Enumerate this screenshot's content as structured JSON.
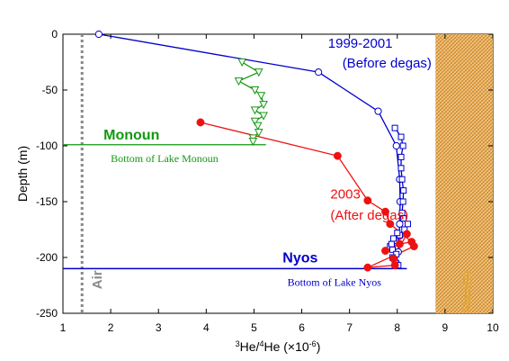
{
  "chart_data": {
    "type": "scatter",
    "xlabel_parts": {
      "sup1": "3",
      "mid": "He/",
      "sup2": "4",
      "tail": "He (×10",
      "exp": "-6",
      "close": ")"
    },
    "ylabel": "Depth (m)",
    "xlim": [
      1,
      10
    ],
    "ylim": [
      -250,
      0
    ],
    "xticks": [
      1,
      2,
      3,
      4,
      5,
      6,
      7,
      8,
      9,
      10
    ],
    "yticks": [
      0,
      -50,
      -100,
      -150,
      -200,
      -250
    ],
    "series": [
      {
        "key": "1999-2001",
        "marker": "open-circle",
        "color": "#0000cc",
        "points": [
          [
            1.75,
            0
          ],
          [
            6.35,
            -34
          ],
          [
            7.6,
            -69
          ],
          [
            7.98,
            -100
          ],
          [
            8.05,
            -130
          ],
          [
            8.06,
            -150
          ],
          [
            8.05,
            -170
          ],
          [
            8.02,
            -195
          ],
          [
            7.98,
            -205
          ]
        ]
      },
      {
        "key": "1999-2001-squares",
        "marker": "open-square",
        "color": "#0000cc",
        "points": [
          [
            7.95,
            -84
          ],
          [
            8.08,
            -92
          ],
          [
            8.12,
            -100
          ],
          [
            8.08,
            -110
          ],
          [
            8.08,
            -120
          ],
          [
            8.1,
            -130
          ],
          [
            8.13,
            -140
          ],
          [
            8.12,
            -150
          ],
          [
            8.1,
            -160
          ],
          [
            8.13,
            -165
          ],
          [
            8.22,
            -170
          ],
          [
            8.15,
            -175
          ],
          [
            8.05,
            -180
          ],
          [
            7.95,
            -185
          ],
          [
            7.85,
            -190
          ],
          [
            7.9,
            -193
          ],
          [
            7.98,
            -197
          ],
          [
            7.9,
            -200
          ],
          [
            7.95,
            -204
          ],
          [
            8.02,
            -207
          ],
          [
            7.92,
            -183
          ],
          [
            8.0,
            -178
          ],
          [
            7.88,
            -188
          ]
        ]
      },
      {
        "key": "2003",
        "marker": "filled-circle",
        "color": "#ee1111",
        "points": [
          [
            3.88,
            -79
          ],
          [
            6.75,
            -109
          ],
          [
            7.38,
            -149
          ],
          [
            7.75,
            -159
          ],
          [
            7.85,
            -170
          ],
          [
            8.3,
            -186
          ],
          [
            8.05,
            -188
          ],
          [
            7.75,
            -194
          ],
          [
            8.2,
            -179
          ],
          [
            7.92,
            -201
          ],
          [
            7.95,
            -207
          ],
          [
            7.38,
            -209
          ],
          [
            8.35,
            -190
          ]
        ]
      },
      {
        "key": "Monoun",
        "marker": "open-triangle",
        "color": "#119911",
        "points": [
          [
            4.75,
            -25
          ],
          [
            5.1,
            -34
          ],
          [
            4.68,
            -42
          ],
          [
            5.02,
            -50
          ],
          [
            5.15,
            -55
          ],
          [
            5.2,
            -63
          ],
          [
            5.02,
            -68
          ],
          [
            5.2,
            -73
          ],
          [
            5.02,
            -78
          ],
          [
            5.08,
            -82
          ],
          [
            5.1,
            -88
          ],
          [
            4.98,
            -93
          ],
          [
            4.98,
            -96
          ]
        ]
      }
    ],
    "reference_lines": {
      "air": {
        "x": 1.4,
        "label": "Air",
        "color": "#888888"
      },
      "mantle": {
        "x_start": 8.8,
        "x_end": 10,
        "label": "Mantle",
        "color": "#e3a63a"
      },
      "monoun_depth": {
        "y": -99,
        "x_end": 5.25,
        "label": "Monoun",
        "note": "Bottom of Lake Monoun",
        "color": "#119911"
      },
      "nyos_depth": {
        "y": -210,
        "x_end": 8.2,
        "label": "Nyos",
        "note": "Bottom of Lake Nyos",
        "color": "#0000cc"
      }
    },
    "annotations": {
      "before_years": "1999-2001",
      "before_note": "(Before degas)",
      "after_year": "2003",
      "after_note": "(After degas)"
    },
    "grid": false,
    "legend": "none"
  }
}
